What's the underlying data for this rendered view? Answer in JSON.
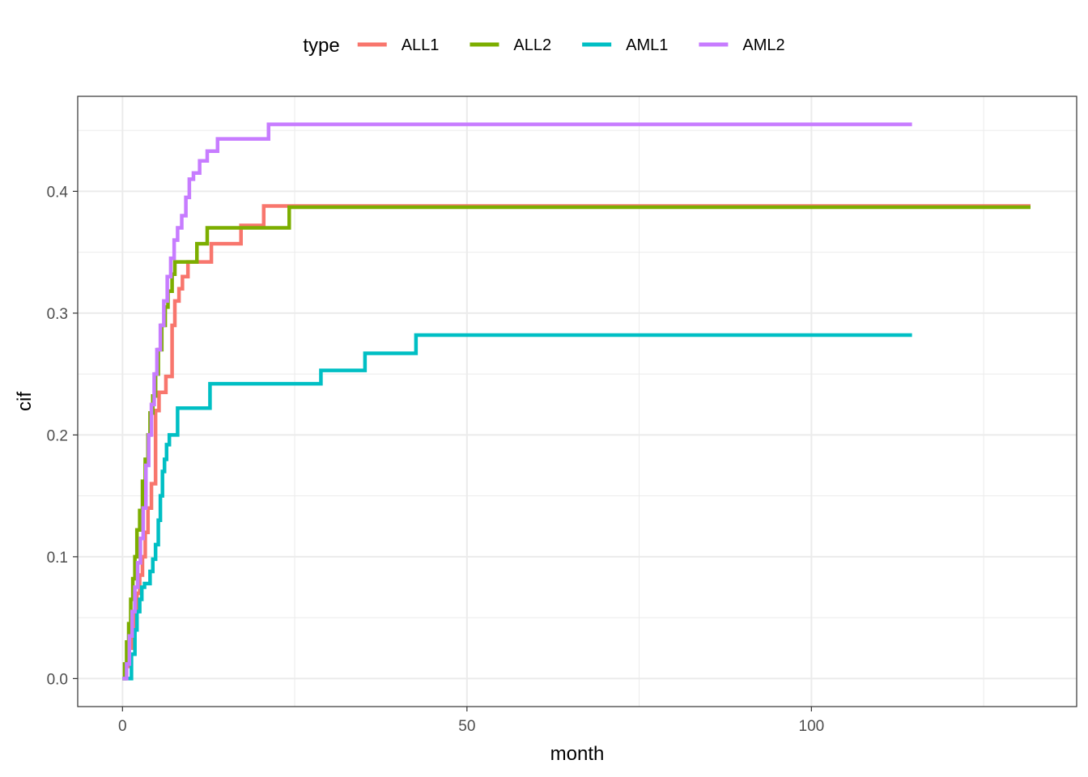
{
  "chart_data": {
    "type": "line",
    "title": "",
    "xlabel": "month",
    "ylabel": "cif",
    "xlim": [
      -6.5,
      138.5
    ],
    "ylim": [
      -0.023,
      0.478
    ],
    "x_ticks": [
      0,
      50,
      100
    ],
    "y_ticks": [
      0.0,
      0.1,
      0.2,
      0.3,
      0.4
    ],
    "x_tick_labels": [
      "0",
      "50",
      "100"
    ],
    "y_tick_labels": [
      "0.0",
      "0.1",
      "0.2",
      "0.3",
      "0.4"
    ],
    "grid": true,
    "step": true,
    "legend": {
      "title": "type",
      "position": "top"
    },
    "series": [
      {
        "name": "ALL1",
        "color": "#F8766D",
        "x": [
          0,
          0.5,
          0.9,
          1.3,
          1.7,
          2.1,
          2.5,
          2.9,
          3.3,
          3.7,
          4.2,
          4.8,
          5.3,
          6.3,
          7.2,
          7.6,
          8.2,
          8.7,
          9.5,
          10.5,
          12.9,
          17.2,
          20.5,
          131.8
        ],
        "y": [
          0,
          0.01,
          0.025,
          0.04,
          0.055,
          0.07,
          0.085,
          0.1,
          0.12,
          0.14,
          0.16,
          0.22,
          0.235,
          0.248,
          0.29,
          0.31,
          0.32,
          0.33,
          0.342,
          0.342,
          0.357,
          0.372,
          0.388,
          0.388
        ]
      },
      {
        "name": "ALL2",
        "color": "#7CAE00",
        "x": [
          0,
          0.3,
          0.6,
          0.9,
          1.2,
          1.5,
          1.8,
          2.1,
          2.5,
          2.9,
          3.3,
          3.7,
          4.0,
          4.4,
          4.8,
          5.2,
          5.7,
          6.2,
          6.6,
          7.2,
          7.6,
          8.2,
          10.8,
          12.3,
          17.1,
          24.2,
          131.8
        ],
        "y": [
          0,
          0.012,
          0.03,
          0.045,
          0.065,
          0.082,
          0.1,
          0.122,
          0.138,
          0.162,
          0.18,
          0.2,
          0.218,
          0.232,
          0.25,
          0.27,
          0.29,
          0.305,
          0.318,
          0.332,
          0.342,
          0.342,
          0.357,
          0.37,
          0.37,
          0.387,
          0.387
        ]
      },
      {
        "name": "AML1",
        "color": "#00BFC4",
        "x": [
          0,
          1.3,
          1.8,
          2.1,
          2.5,
          2.8,
          3.2,
          3.6,
          4.0,
          4.4,
          4.8,
          5.2,
          5.5,
          5.8,
          6.1,
          6.4,
          6.8,
          7.3,
          8.0,
          9.5,
          12.7,
          28.8,
          35.2,
          42.6,
          114.6
        ],
        "y": [
          0,
          0.02,
          0.04,
          0.055,
          0.065,
          0.075,
          0.078,
          0.078,
          0.088,
          0.098,
          0.11,
          0.13,
          0.15,
          0.17,
          0.18,
          0.192,
          0.2,
          0.2,
          0.222,
          0.222,
          0.242,
          0.253,
          0.267,
          0.282,
          0.282
        ]
      },
      {
        "name": "AML2",
        "color": "#C77CFF",
        "x": [
          0,
          0.6,
          1.0,
          1.4,
          1.8,
          2.2,
          2.6,
          3.0,
          3.4,
          3.8,
          4.2,
          4.6,
          5.0,
          5.5,
          6.0,
          6.5,
          7.0,
          7.5,
          8.0,
          8.6,
          9.2,
          9.7,
          10.3,
          11.2,
          12.3,
          13.8,
          21.2,
          114.6
        ],
        "y": [
          0,
          0.012,
          0.035,
          0.055,
          0.075,
          0.095,
          0.115,
          0.14,
          0.175,
          0.2,
          0.225,
          0.25,
          0.27,
          0.29,
          0.31,
          0.33,
          0.345,
          0.36,
          0.37,
          0.38,
          0.395,
          0.41,
          0.415,
          0.425,
          0.433,
          0.443,
          0.455,
          0.455
        ]
      }
    ]
  }
}
